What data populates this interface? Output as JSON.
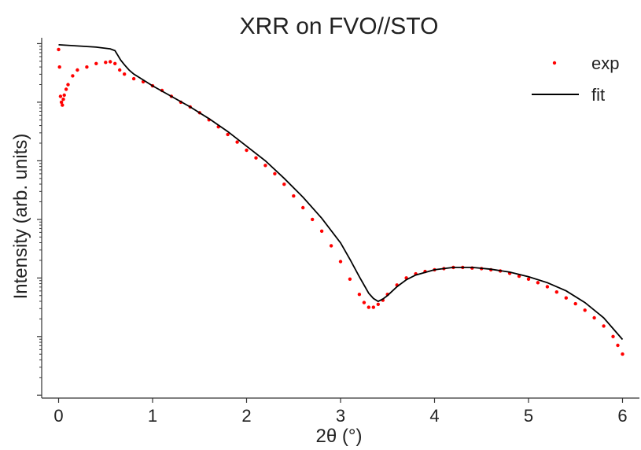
{
  "chart_data": {
    "type": "scatter",
    "title": "XRR on FVO//STO",
    "xlabel": "2θ (°)",
    "ylabel": "Intensity (arb. units)",
    "xlim": [
      -0.18,
      6.18
    ],
    "xticks": [
      0,
      1,
      2,
      3,
      4,
      5,
      6
    ],
    "y_scale": "log",
    "ylim_log10": [
      -6.05,
      0.1
    ],
    "y_decade_ticks_log10": [
      0,
      -1,
      -2,
      -3,
      -4,
      -5,
      -6
    ],
    "grid": false,
    "legend_position": "top-right",
    "series": [
      {
        "name": "exp",
        "kind": "points",
        "color": "#ff0000",
        "x": [
          0.0,
          0.01,
          0.02,
          0.03,
          0.04,
          0.05,
          0.06,
          0.08,
          0.1,
          0.15,
          0.2,
          0.3,
          0.4,
          0.5,
          0.55,
          0.6,
          0.65,
          0.7,
          0.8,
          0.9,
          1.0,
          1.1,
          1.2,
          1.3,
          1.4,
          1.5,
          1.6,
          1.7,
          1.8,
          1.9,
          2.0,
          2.1,
          2.2,
          2.3,
          2.4,
          2.5,
          2.6,
          2.7,
          2.8,
          2.9,
          3.0,
          3.1,
          3.2,
          3.25,
          3.3,
          3.35,
          3.4,
          3.45,
          3.5,
          3.6,
          3.7,
          3.8,
          3.9,
          4.0,
          4.1,
          4.2,
          4.3,
          4.4,
          4.5,
          4.6,
          4.7,
          4.8,
          4.9,
          5.0,
          5.1,
          5.2,
          5.3,
          5.4,
          5.5,
          5.6,
          5.7,
          5.8,
          5.9,
          5.95,
          6.0
        ],
        "y_log10": [
          -0.1,
          -0.4,
          -0.9,
          -1.0,
          -1.05,
          -0.95,
          -0.88,
          -0.78,
          -0.7,
          -0.55,
          -0.45,
          -0.4,
          -0.34,
          -0.32,
          -0.31,
          -0.34,
          -0.45,
          -0.52,
          -0.6,
          -0.65,
          -0.72,
          -0.8,
          -0.9,
          -1.0,
          -1.08,
          -1.18,
          -1.3,
          -1.42,
          -1.55,
          -1.68,
          -1.82,
          -1.95,
          -2.08,
          -2.22,
          -2.4,
          -2.6,
          -2.8,
          -3.0,
          -3.2,
          -3.45,
          -3.72,
          -4.02,
          -4.28,
          -4.42,
          -4.5,
          -4.5,
          -4.45,
          -4.38,
          -4.28,
          -4.12,
          -4.0,
          -3.93,
          -3.89,
          -3.86,
          -3.84,
          -3.82,
          -3.82,
          -3.83,
          -3.84,
          -3.86,
          -3.88,
          -3.92,
          -3.97,
          -4.02,
          -4.08,
          -4.15,
          -4.24,
          -4.34,
          -4.44,
          -4.55,
          -4.68,
          -4.82,
          -5.0,
          -5.15,
          -5.3
        ]
      },
      {
        "name": "fit",
        "kind": "line",
        "color": "#000000",
        "x": [
          0.0,
          0.2,
          0.4,
          0.5,
          0.55,
          0.6,
          0.63,
          0.66,
          0.7,
          0.75,
          0.8,
          0.9,
          1.0,
          1.2,
          1.4,
          1.6,
          1.8,
          2.0,
          2.2,
          2.4,
          2.6,
          2.8,
          3.0,
          3.1,
          3.2,
          3.3,
          3.35,
          3.4,
          3.45,
          3.5,
          3.6,
          3.7,
          3.8,
          4.0,
          4.2,
          4.4,
          4.6,
          4.8,
          5.0,
          5.2,
          5.4,
          5.6,
          5.8,
          6.0
        ],
        "y_log10": [
          -0.02,
          -0.04,
          -0.06,
          -0.08,
          -0.09,
          -0.12,
          -0.2,
          -0.28,
          -0.36,
          -0.45,
          -0.52,
          -0.62,
          -0.72,
          -0.9,
          -1.08,
          -1.28,
          -1.5,
          -1.75,
          -2.0,
          -2.3,
          -2.62,
          -2.98,
          -3.4,
          -3.68,
          -3.98,
          -4.26,
          -4.35,
          -4.4,
          -4.36,
          -4.3,
          -4.15,
          -4.03,
          -3.95,
          -3.86,
          -3.82,
          -3.82,
          -3.85,
          -3.9,
          -3.98,
          -4.08,
          -4.22,
          -4.42,
          -4.68,
          -5.05
        ]
      }
    ]
  }
}
